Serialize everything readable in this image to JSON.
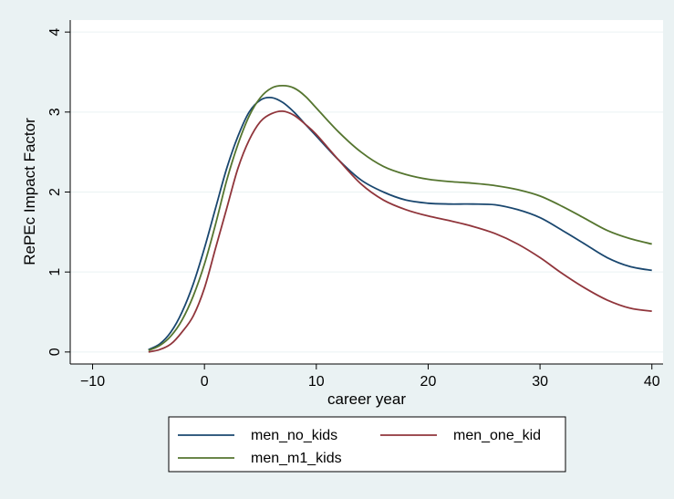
{
  "chart_data": {
    "type": "line",
    "title": "",
    "xlabel": "career year",
    "ylabel": "RePEc Impact Factor",
    "xlim": [
      -12,
      41
    ],
    "ylim": [
      -0.15,
      4.15
    ],
    "xticks": [
      -10,
      0,
      10,
      20,
      30,
      40
    ],
    "xtick_labels": [
      "−10",
      "0",
      "10",
      "20",
      "30",
      "40"
    ],
    "yticks": [
      0,
      1,
      2,
      3,
      4
    ],
    "ytick_labels": [
      "0",
      "1",
      "2",
      "3",
      "4"
    ],
    "grid": "horizontal",
    "legend_position": "bottom",
    "series": [
      {
        "name": "men_no_kids",
        "color": "#1a476f",
        "x": [
          -5,
          -4,
          -3,
          -2,
          -1,
          0,
          1,
          2,
          3,
          4,
          5,
          6,
          7,
          8,
          9,
          10,
          12,
          14,
          16,
          18,
          20,
          22,
          24,
          26,
          28,
          30,
          32,
          34,
          36,
          38,
          40
        ],
        "y": [
          0.03,
          0.1,
          0.25,
          0.5,
          0.85,
          1.3,
          1.8,
          2.3,
          2.7,
          3.0,
          3.15,
          3.18,
          3.12,
          3.0,
          2.85,
          2.7,
          2.4,
          2.15,
          2.0,
          1.9,
          1.86,
          1.85,
          1.85,
          1.84,
          1.78,
          1.68,
          1.52,
          1.35,
          1.18,
          1.07,
          1.02
        ]
      },
      {
        "name": "men_one_kid",
        "color": "#90353b",
        "x": [
          -5,
          -4,
          -3,
          -2,
          -1,
          0,
          1,
          2,
          3,
          4,
          5,
          6,
          7,
          8,
          9,
          10,
          12,
          14,
          16,
          18,
          20,
          22,
          24,
          26,
          28,
          30,
          32,
          34,
          36,
          38,
          40
        ],
        "y": [
          0.0,
          0.03,
          0.1,
          0.25,
          0.45,
          0.8,
          1.3,
          1.8,
          2.3,
          2.65,
          2.88,
          2.98,
          3.01,
          2.96,
          2.85,
          2.72,
          2.4,
          2.1,
          1.9,
          1.78,
          1.7,
          1.64,
          1.57,
          1.48,
          1.35,
          1.18,
          0.98,
          0.8,
          0.65,
          0.55,
          0.51
        ]
      },
      {
        "name": "men_m1_kids",
        "color": "#55752f",
        "x": [
          -5,
          -4,
          -3,
          -2,
          -1,
          0,
          1,
          2,
          3,
          4,
          5,
          6,
          7,
          8,
          9,
          10,
          12,
          14,
          16,
          18,
          20,
          22,
          24,
          26,
          28,
          30,
          32,
          34,
          36,
          38,
          40
        ],
        "y": [
          0.02,
          0.08,
          0.2,
          0.4,
          0.7,
          1.1,
          1.6,
          2.15,
          2.6,
          2.95,
          3.18,
          3.3,
          3.33,
          3.3,
          3.2,
          3.05,
          2.75,
          2.5,
          2.32,
          2.22,
          2.16,
          2.13,
          2.11,
          2.08,
          2.03,
          1.95,
          1.82,
          1.67,
          1.52,
          1.42,
          1.35
        ]
      }
    ]
  }
}
